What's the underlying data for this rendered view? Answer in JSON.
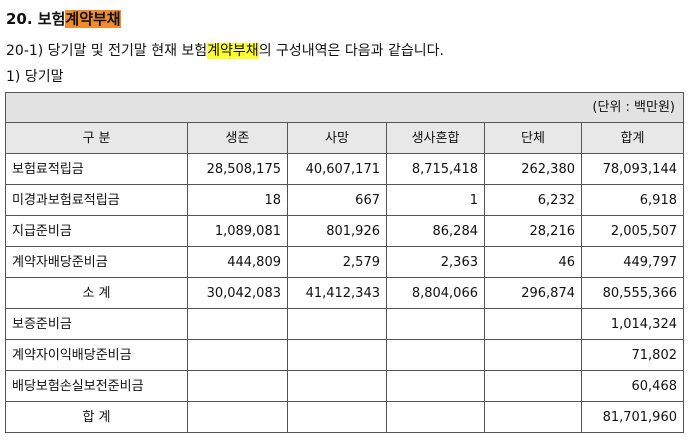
{
  "heading": {
    "prefix": "20. 보험",
    "highlight": "계약부채"
  },
  "subheading": {
    "prefix": "20-1) 당기말 및 전기말 현재 보험",
    "highlight": "계약부채",
    "suffix": "의 구성내역은 다음과 같습니다."
  },
  "subsub": "1) 당기말",
  "table": {
    "unit": "(단위 : 백만원)",
    "columns": [
      "구 분",
      "생존",
      "사망",
      "생사혼합",
      "단체",
      "합계"
    ],
    "rows": [
      {
        "label": "보험료적립금",
        "cells": [
          "28,508,175",
          "40,607,171",
          "8,715,418",
          "262,380",
          "78,093,144"
        ]
      },
      {
        "label": "미경과보험료적립금",
        "cells": [
          "18",
          "667",
          "1",
          "6,232",
          "6,918"
        ]
      },
      {
        "label": "지급준비금",
        "cells": [
          "1,089,081",
          "801,926",
          "86,284",
          "28,216",
          "2,005,507"
        ]
      },
      {
        "label": "계약자배당준비금",
        "cells": [
          "444,809",
          "2,579",
          "2,363",
          "46",
          "449,797"
        ]
      },
      {
        "label": "소 계",
        "cells": [
          "30,042,083",
          "41,412,343",
          "8,804,066",
          "296,874",
          "80,555,366"
        ]
      },
      {
        "label": "보증준비금",
        "cells": [
          "",
          "",
          "",
          "",
          "1,014,324"
        ]
      },
      {
        "label": "계약자이익배당준비금",
        "cells": [
          "",
          "",
          "",
          "",
          "71,802"
        ]
      },
      {
        "label": "배당보험손실보전준비금",
        "cells": [
          "",
          "",
          "",
          "",
          "60,468"
        ]
      },
      {
        "label": "합 계",
        "cells": [
          "",
          "",
          "",
          "",
          "81,701,960"
        ]
      }
    ]
  }
}
